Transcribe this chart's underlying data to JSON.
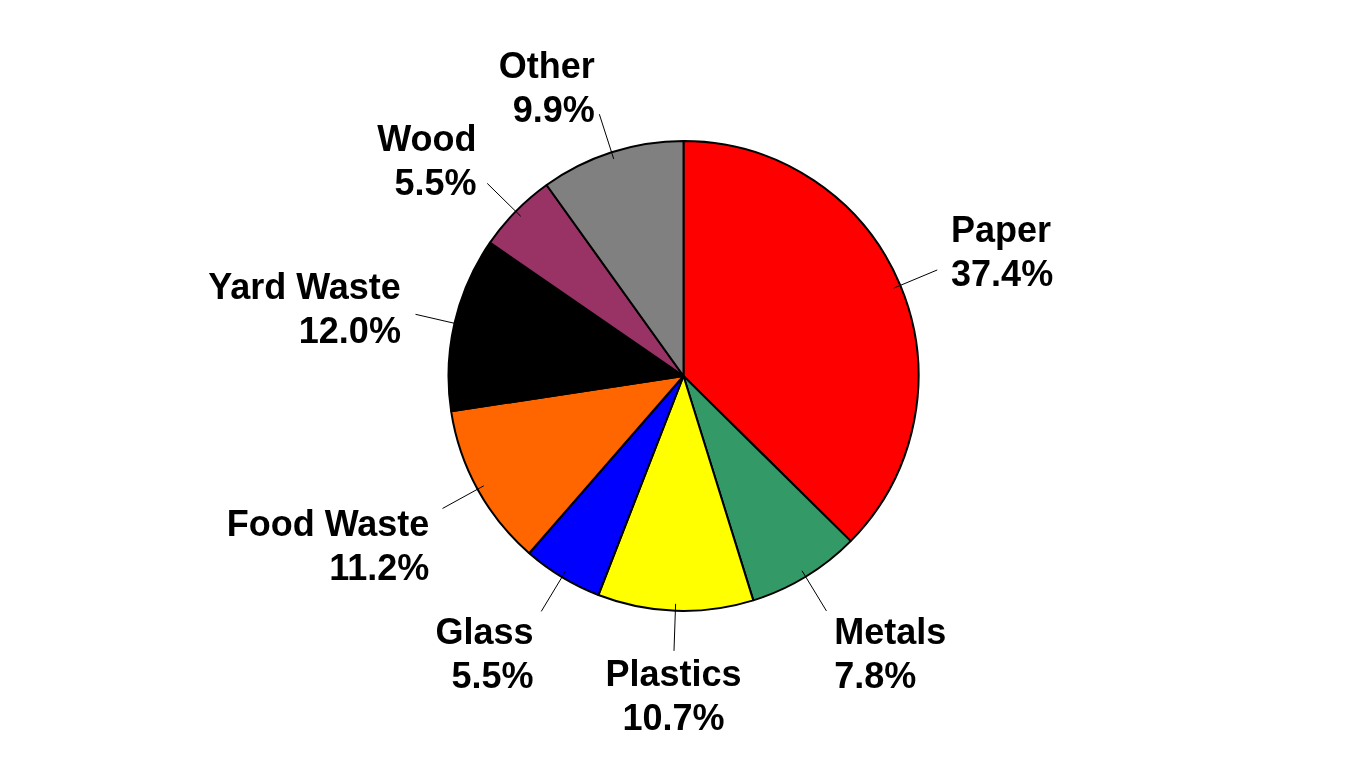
{
  "chart_data": {
    "type": "pie",
    "categories": [
      "Paper",
      "Metals",
      "Plastics",
      "Glass",
      "Food Waste",
      "Yard Waste",
      "Wood",
      "Other"
    ],
    "values": [
      37.4,
      7.8,
      10.7,
      5.5,
      11.2,
      12.0,
      5.5,
      9.9
    ],
    "value_labels": [
      "37.4%",
      "7.8%",
      "10.7%",
      "5.5%",
      "11.2%",
      "12.0%",
      "5.5%",
      "9.9%"
    ],
    "colors": [
      "#ff0000",
      "#339966",
      "#ffff00",
      "#0000ff",
      "#ff6600",
      "#000000",
      "#993366",
      "#808080"
    ],
    "legend": false
  }
}
